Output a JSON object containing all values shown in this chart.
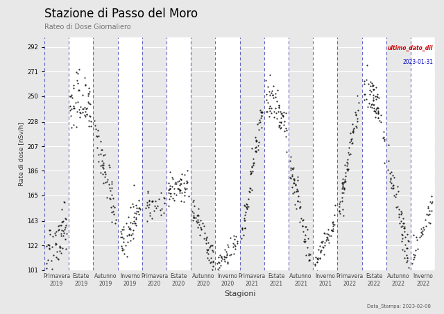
{
  "title": "Stazione di Passo del Moro",
  "subtitle": "Rateo di Dose Giornaliero",
  "xlabel": "Stagioni",
  "ylabel": "Rate di dose [nSv/h]",
  "annotation_label": "ultimo_dato_dil",
  "annotation_date": "2023-01-31",
  "data_stamp": "Data_Stampa: 2023-02-08",
  "ylim": [
    101,
    300
  ],
  "yticks": [
    101,
    122,
    143,
    165,
    186,
    207,
    228,
    250,
    271,
    292
  ],
  "seasons": [
    "Primavera\n2019",
    "Estate\n2019",
    "Autunno\n2019",
    "Inverno\n2019",
    "Primavera\n2020",
    "Estate\n2020",
    "Autunno\n2020",
    "Inverno\n2020",
    "Primavera\n2021",
    "Estate\n2021",
    "Autunno\n2021",
    "Inverno\n2021",
    "Primavera\n2022",
    "Estate\n2022",
    "Autunno\n2022",
    "Inverno\n2022"
  ],
  "background_color": "#e8e8e8",
  "panel_alt_color": "#d8d8d8",
  "vline_color": "#5555bb",
  "point_color": "#111111",
  "title_color": "#000000",
  "annotation_color": "#cc0000",
  "date_color": "#0000cc",
  "stamp_color": "#555555",
  "season_envelopes": {
    "0": {
      "base": 118,
      "spread": 12,
      "trend": [
        0,
        25
      ],
      "n": 60
    },
    "1": {
      "base": 240,
      "spread": 12,
      "trend": [
        30,
        -35
      ],
      "n": 60
    },
    "2": {
      "base": 228,
      "spread": 10,
      "trend": [
        -85,
        -5
      ],
      "n": 55
    },
    "3": {
      "base": 120,
      "spread": 8,
      "trend": [
        30,
        5
      ],
      "n": 55
    },
    "4": {
      "base": 155,
      "spread": 6,
      "trend": [
        5,
        0
      ],
      "n": 30
    },
    "5": {
      "base": 163,
      "spread": 7,
      "trend": [
        32,
        -30
      ],
      "n": 55
    },
    "6": {
      "base": 158,
      "spread": 6,
      "trend": [
        -50,
        -5
      ],
      "n": 55
    },
    "7": {
      "base": 104,
      "spread": 5,
      "trend": [
        20,
        5
      ],
      "n": 40
    },
    "8": {
      "base": 122,
      "spread": 8,
      "trend": [
        120,
        5
      ],
      "n": 65
    },
    "9": {
      "base": 248,
      "spread": 10,
      "trend": [
        15,
        -50
      ],
      "n": 60
    },
    "10": {
      "base": 196,
      "spread": 8,
      "trend": [
        -90,
        -5
      ],
      "n": 60
    },
    "11": {
      "base": 102,
      "spread": 6,
      "trend": [
        42,
        5
      ],
      "n": 50
    },
    "12": {
      "base": 148,
      "spread": 8,
      "trend": [
        108,
        0
      ],
      "n": 65
    },
    "13": {
      "base": 256,
      "spread": 8,
      "trend": [
        8,
        -55
      ],
      "n": 65
    },
    "14": {
      "base": 198,
      "spread": 8,
      "trend": [
        -88,
        -5
      ],
      "n": 60
    },
    "15": {
      "base": 107,
      "spread": 6,
      "trend": [
        55,
        0
      ],
      "n": 35
    }
  }
}
